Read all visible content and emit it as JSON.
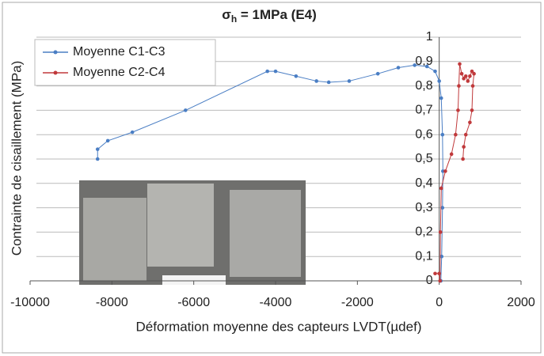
{
  "chart_data": {
    "type": "line",
    "title": {
      "symbol": "σ",
      "subscript": "h",
      "text": " = 1MPa (E4)"
    },
    "x_label": "Déformation moyenne des capteurs LVDT(µdef)",
    "y_label": "Contrainte de cisaillement (MPa)",
    "xlim": [
      -10000,
      2000
    ],
    "xticks": [
      -10000,
      -8000,
      -6000,
      -4000,
      -2000,
      0,
      2000
    ],
    "ylim": [
      0,
      1
    ],
    "yticks": [
      0,
      {
        "value": 0.1,
        "label": "0,1"
      },
      {
        "value": 0.2,
        "label": "0,2"
      },
      {
        "value": 0.3,
        "label": "0,3"
      },
      {
        "value": 0.4,
        "label": "0,4"
      },
      {
        "value": 0.5,
        "label": "0,5"
      },
      {
        "value": 0.6,
        "label": "0,6"
      },
      {
        "value": 0.7,
        "label": "0,7"
      },
      {
        "value": 0.8,
        "label": "0,8"
      },
      {
        "value": 0.9,
        "label": "0,9"
      },
      1
    ],
    "grid": true,
    "legend": "top-left",
    "series": [
      {
        "name": "Moyenne C1-C3",
        "color": "#4a7ec4",
        "x": [
          -8350,
          -8350,
          -8100,
          -7500,
          -6200,
          -4200,
          -4000,
          -3500,
          -3000,
          -2700,
          -2200,
          -1500,
          -1000,
          -600,
          -300,
          -100,
          0,
          50,
          80,
          90,
          80,
          60,
          40
        ],
        "values": [
          0.5,
          0.54,
          0.575,
          0.61,
          0.7,
          0.86,
          0.86,
          0.84,
          0.82,
          0.815,
          0.82,
          0.85,
          0.875,
          0.885,
          0.88,
          0.86,
          0.82,
          0.75,
          0.6,
          0.45,
          0.3,
          0.1,
          0
        ]
      },
      {
        "name": "Moyenne C2-C4",
        "color": "#c0393b",
        "x": [
          -100,
          0,
          20,
          30,
          50,
          150,
          300,
          400,
          460,
          480,
          500,
          550,
          600,
          650,
          700,
          750,
          800,
          850,
          820,
          800,
          750,
          650,
          600,
          580
        ],
        "values": [
          0.03,
          0.03,
          0,
          0.2,
          0.38,
          0.45,
          0.52,
          0.6,
          0.7,
          0.8,
          0.89,
          0.85,
          0.83,
          0.84,
          0.82,
          0.84,
          0.86,
          0.85,
          0.8,
          0.7,
          0.65,
          0.6,
          0.55,
          0.5
        ]
      }
    ]
  }
}
